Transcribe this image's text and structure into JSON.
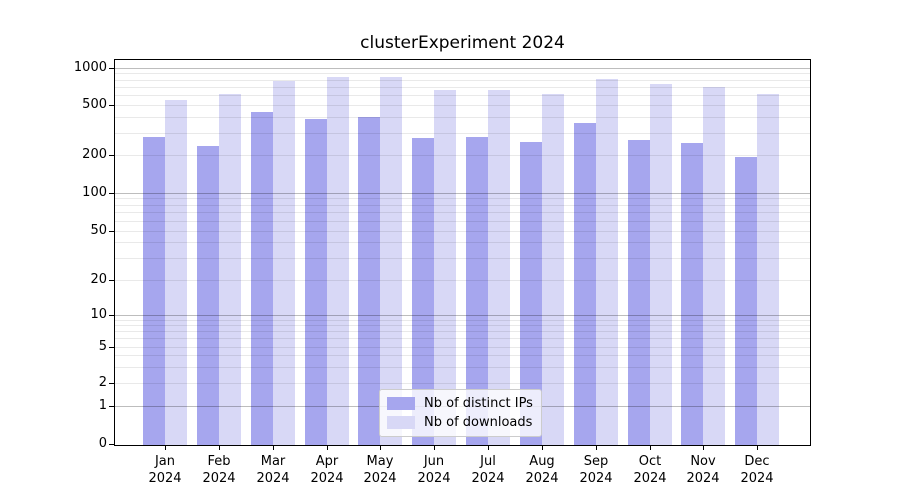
{
  "title": "clusterExperiment 2024",
  "legend": {
    "items": [
      {
        "label": "Nb of distinct IPs",
        "color": "#a6a6ee"
      },
      {
        "label": "Nb of downloads",
        "color": "#d8d8f6"
      }
    ]
  },
  "colors": {
    "bar_dark": "#a6a6ee",
    "bar_light": "#d8d8f6",
    "grid_major": "rgba(0,0,0,0.26)",
    "grid_minor": "rgba(0,0,0,0.085)",
    "axis": "#000000",
    "background": "#ffffff"
  },
  "chart_data": {
    "type": "bar",
    "title": "clusterExperiment 2024",
    "categories": [
      "Jan",
      "Feb",
      "Mar",
      "Apr",
      "May",
      "Jun",
      "Jul",
      "Aug",
      "Sep",
      "Oct",
      "Nov",
      "Dec"
    ],
    "year_label": "2024",
    "series": [
      {
        "name": "Nb of distinct IPs",
        "color": "#a6a6ee",
        "values": [
          285,
          240,
          450,
          395,
          410,
          280,
          285,
          260,
          365,
          270,
          255,
          195
        ]
      },
      {
        "name": "Nb of downloads",
        "color": "#d8d8f6",
        "values": [
          560,
          620,
          800,
          850,
          860,
          675,
          675,
          630,
          820,
          755,
          715,
          630
        ]
      }
    ],
    "yscale": "asinh",
    "ylim": [
      0,
      1120
    ],
    "ytick_values": [
      0,
      1,
      2,
      5,
      10,
      20,
      50,
      100,
      200,
      500,
      1000
    ],
    "ytick_labels": [
      "0",
      "1",
      "2",
      "5",
      "10",
      "20",
      "50",
      "100",
      "200",
      "500",
      "1000"
    ],
    "grid": "both",
    "legend_position": "lower center",
    "xlabel": "",
    "ylabel": ""
  }
}
